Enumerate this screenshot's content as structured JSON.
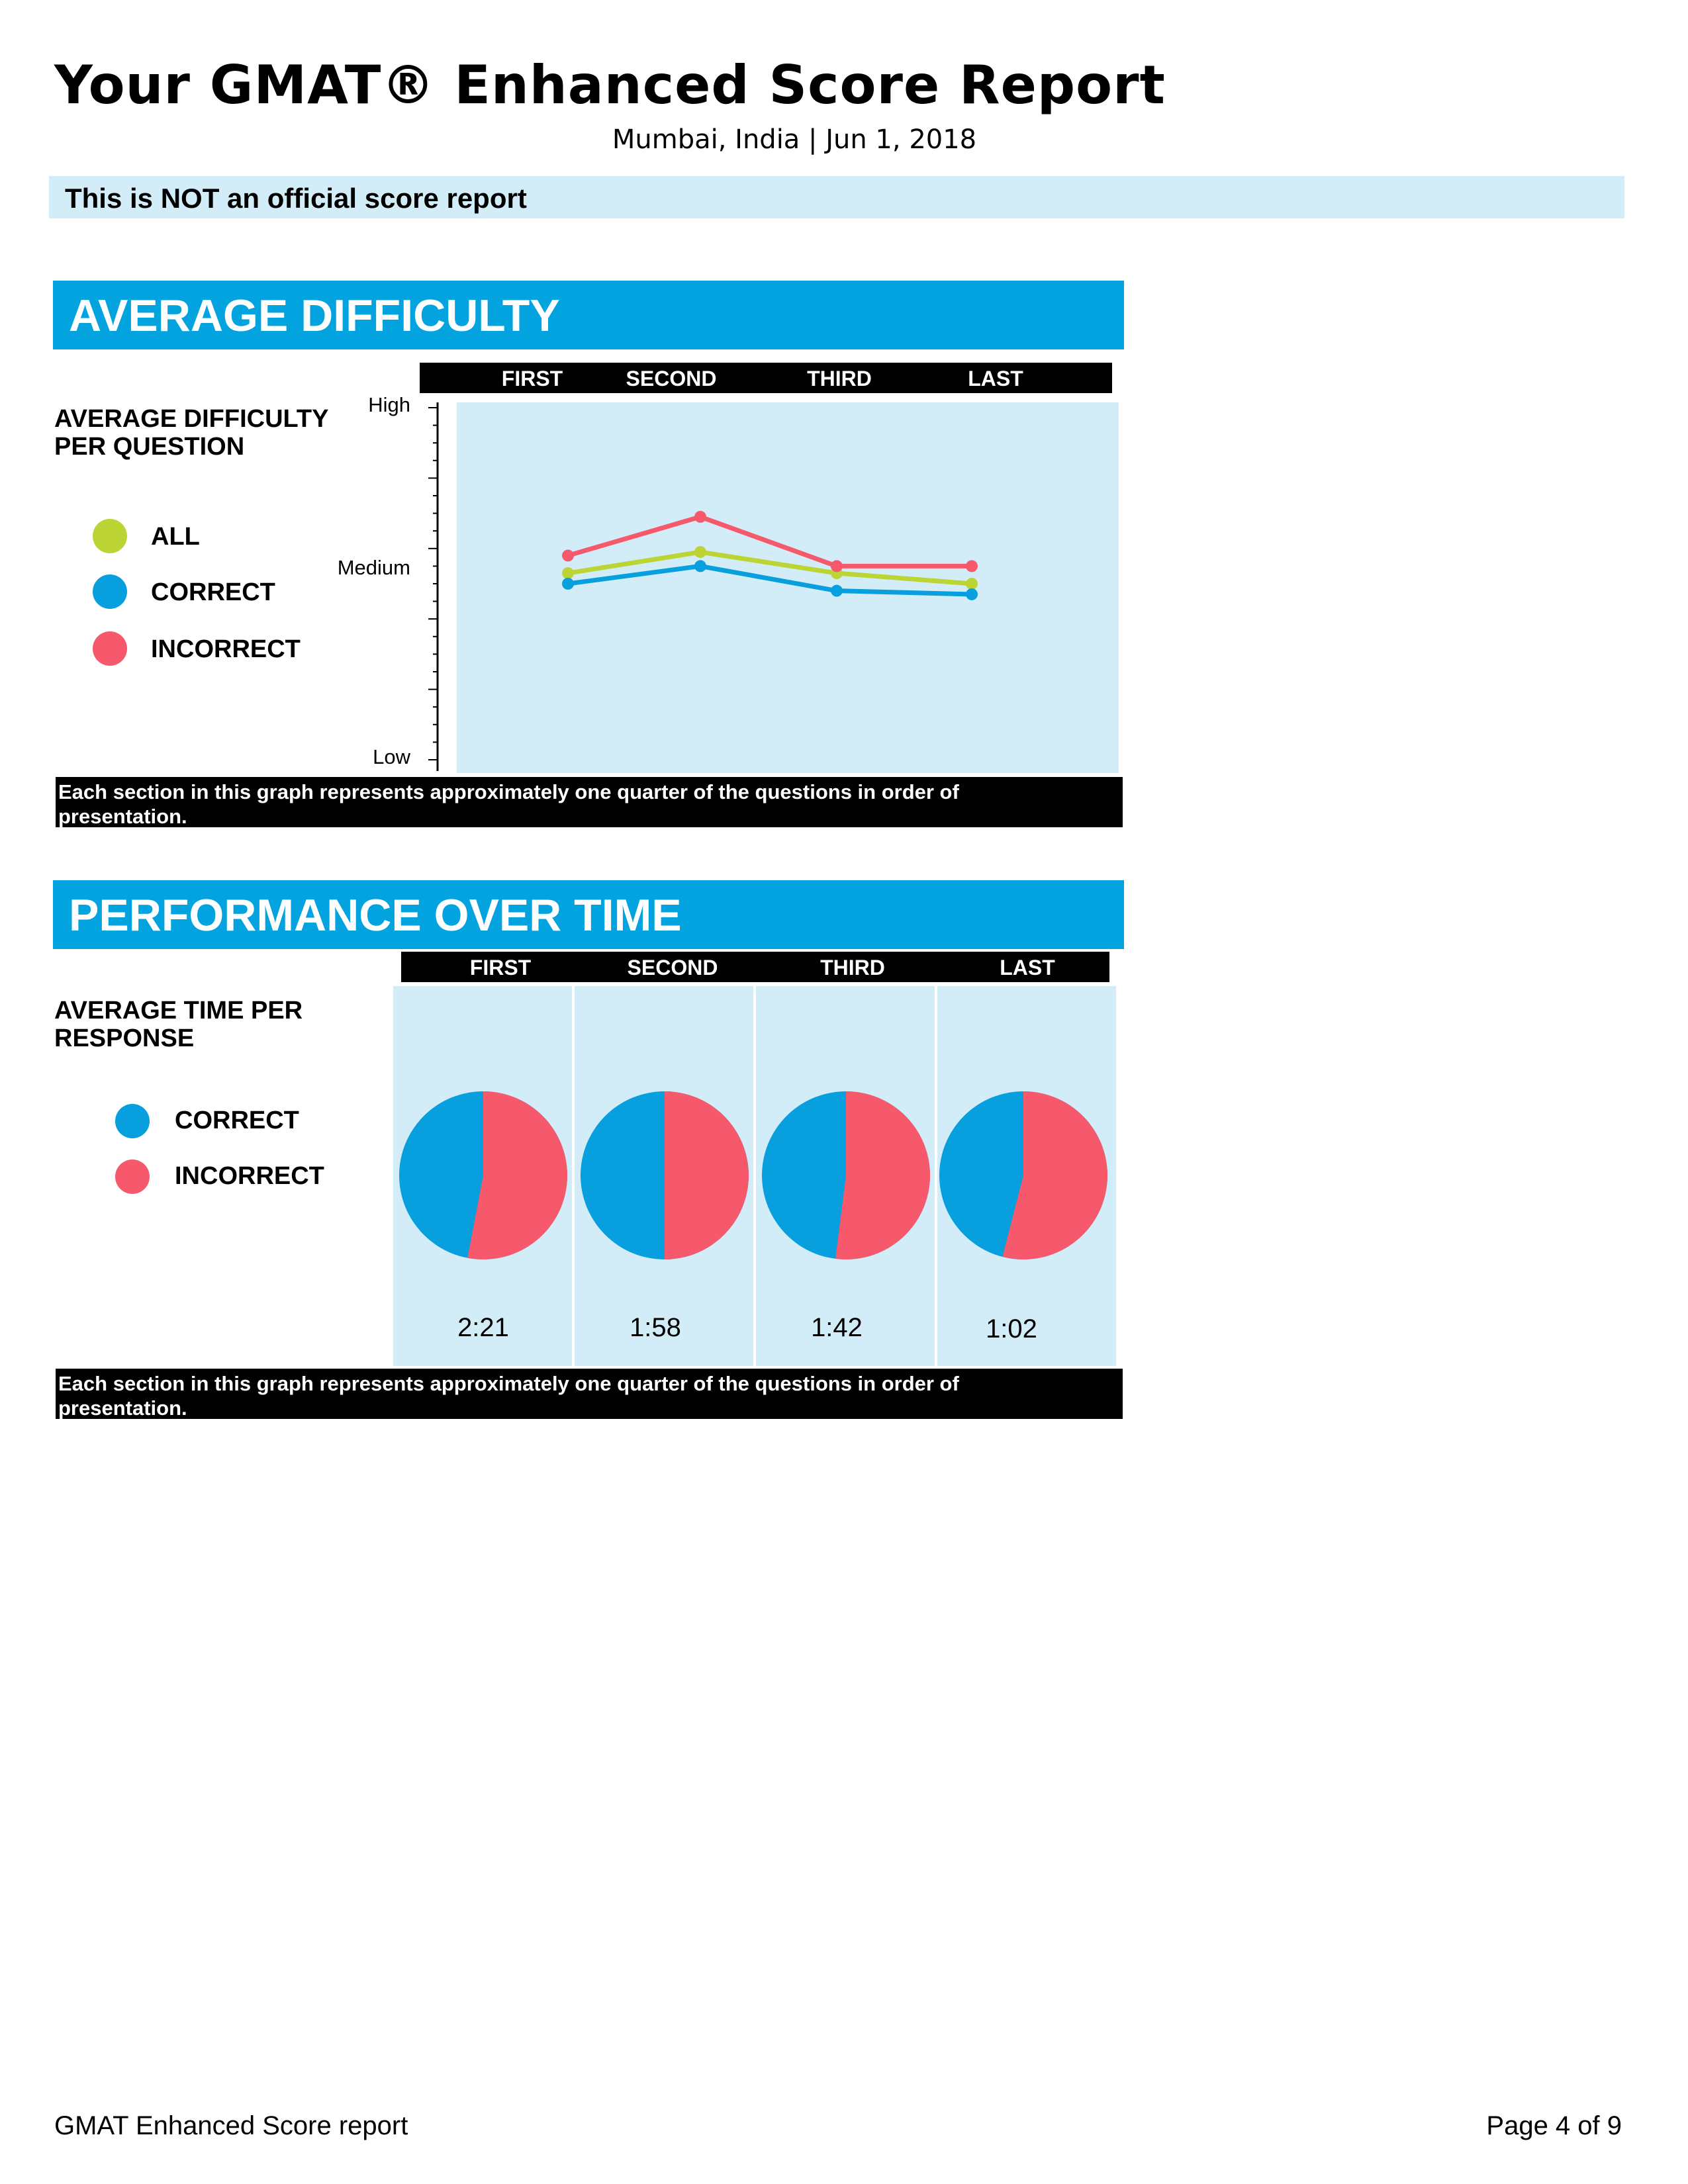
{
  "report": {
    "title": "Your GMAT® Enhanced Score Report",
    "location_date": "Mumbai, India | Jun 1, 2018",
    "notice": "This is NOT an official score report"
  },
  "colors": {
    "accent": "#03a3df",
    "panel": "#d3edf8",
    "all": "#bcd535",
    "correct": "#079fdd",
    "incorrect": "#f7596c"
  },
  "difficulty": {
    "heading": "AVERAGE DIFFICULTY",
    "side_label": "AVERAGE DIFFICULTY PER QUESTION",
    "legend": {
      "all": "ALL",
      "correct": "CORRECT",
      "incorrect": "INCORRECT"
    },
    "caption": "Each section in this graph represents approximately one quarter of the questions in order of presentation."
  },
  "performance": {
    "heading": "PERFORMANCE OVER TIME",
    "side_label": "AVERAGE TIME PER RESPONSE",
    "legend": {
      "correct": "CORRECT",
      "incorrect": "INCORRECT"
    },
    "caption": "Each section in this graph represents approximately one quarter of the questions in order of presentation."
  },
  "chart_data": [
    {
      "type": "line",
      "title": "AVERAGE DIFFICULTY",
      "categories": [
        "FIRST",
        "SECOND",
        "THIRD",
        "LAST"
      ],
      "y_scale": "ordinal difficulty, 0 = Low, 100 = High",
      "ylim": [
        0,
        100
      ],
      "y_tick_labels": [
        "Low",
        "Medium",
        "High"
      ],
      "y_tick_positions": [
        0,
        56,
        100
      ],
      "series": [
        {
          "name": "ALL",
          "values": [
            53,
            59,
            53,
            50
          ]
        },
        {
          "name": "CORRECT",
          "values": [
            50,
            55,
            48,
            47
          ]
        },
        {
          "name": "INCORRECT",
          "values": [
            58,
            69,
            55,
            55
          ]
        }
      ],
      "legend_position": "left"
    },
    {
      "type": "pie",
      "title": "PERFORMANCE OVER TIME",
      "categories": [
        "FIRST",
        "SECOND",
        "THIRD",
        "LAST"
      ],
      "series_names": [
        "CORRECT",
        "INCORRECT"
      ],
      "pies": [
        {
          "correct_pct": 47,
          "incorrect_pct": 53,
          "time": "2:21"
        },
        {
          "correct_pct": 50,
          "incorrect_pct": 50,
          "time": "1:58"
        },
        {
          "correct_pct": 48,
          "incorrect_pct": 52,
          "time": "1:42"
        },
        {
          "correct_pct": 46,
          "incorrect_pct": 54,
          "time": "1:02"
        }
      ]
    }
  ],
  "footer": {
    "left": "GMAT Enhanced Score report",
    "right": "Page 4 of 9"
  }
}
